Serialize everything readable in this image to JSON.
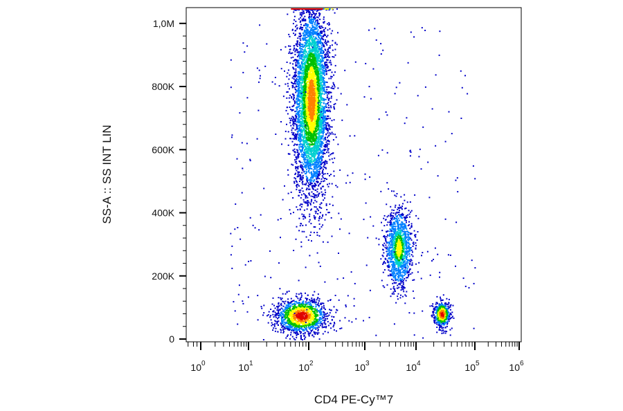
{
  "chart_data": {
    "type": "scatter",
    "title": "",
    "xlabel": "CD4 PE-Cy™7",
    "ylabel": "SS-A :: SS INT LIN",
    "x_scale": "biexponential",
    "x_tick_labels": [
      {
        "value": 1,
        "base": "10",
        "exp": "0"
      },
      {
        "value": 10,
        "base": "10",
        "exp": "1"
      },
      {
        "value": 100,
        "base": "10",
        "exp": "2"
      },
      {
        "value": 1000,
        "base": "10",
        "exp": "3"
      },
      {
        "value": 10000,
        "base": "10",
        "exp": "4"
      },
      {
        "value": 100000,
        "base": "10",
        "exp": "5"
      },
      {
        "value": 1000000,
        "base": "10",
        "exp": "6"
      }
    ],
    "y_scale": "linear",
    "ylim": [
      0,
      1050000
    ],
    "y_ticks": [
      {
        "value": 0,
        "label": "0"
      },
      {
        "value": 200000,
        "label": "200K"
      },
      {
        "value": 400000,
        "label": "400K"
      },
      {
        "value": 600000,
        "label": "600K"
      },
      {
        "value": 800000,
        "label": "800K"
      },
      {
        "value": 1000000,
        "label": "1,0M"
      }
    ],
    "grid": false,
    "legend": "none",
    "colormap": [
      "#0000c8",
      "#0080ff",
      "#00d0d0",
      "#00c000",
      "#ffff00",
      "#ff8000",
      "#e00000"
    ],
    "clusters": [
      {
        "x_center": 110,
        "y_center": 760000,
        "x_spread_decades": 0.15,
        "y_spread": 150000,
        "count": 5200,
        "peak_color": "#ff8000"
      },
      {
        "x_center": 75,
        "y_center": 75000,
        "x_spread_decades": 0.22,
        "y_spread": 28000,
        "count": 1400,
        "peak_color": "#e00000"
      },
      {
        "x_center": 4500,
        "y_center": 290000,
        "x_spread_decades": 0.13,
        "y_spread": 60000,
        "count": 1300,
        "peak_color": "#ffff00"
      },
      {
        "x_center": 27000,
        "y_center": 80000,
        "x_spread_decades": 0.07,
        "y_spread": 20000,
        "count": 550,
        "peak_color": "#e00000"
      }
    ]
  }
}
